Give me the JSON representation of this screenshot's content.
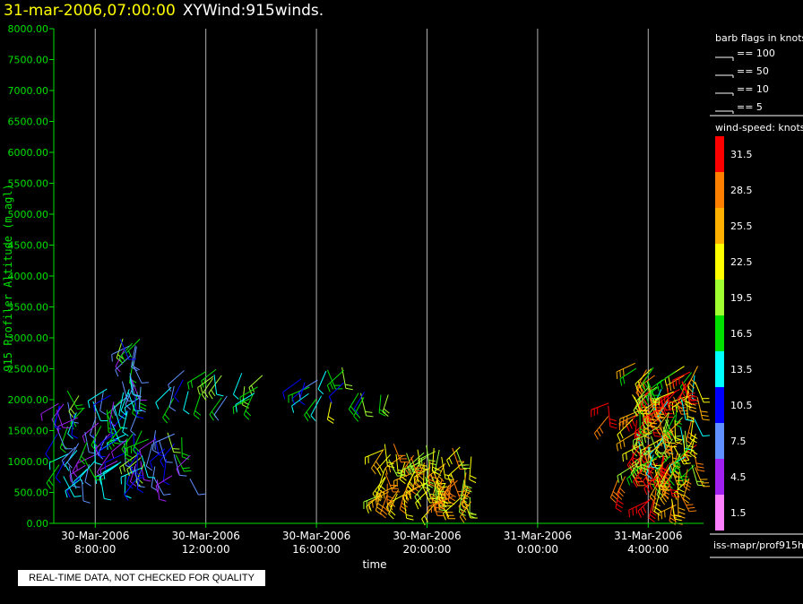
{
  "header": {
    "datetime": "31-mar-2006,07:00:00",
    "plot_name": "XYWind:915winds."
  },
  "chart_data": {
    "type": "scatter",
    "marker": "wind-barb",
    "ylabel": "915 Profiler Altitude (m agl)",
    "xlabel": "time",
    "ylim": [
      0,
      8000
    ],
    "y_ticks": [
      "0.00",
      "500.00",
      "1000.00",
      "1500.00",
      "2000.00",
      "2500.00",
      "3000.00",
      "3500.00",
      "4000.00",
      "4500.00",
      "5000.00",
      "5500.00",
      "6000.00",
      "6500.00",
      "7000.00",
      "7500.00",
      "8000.00"
    ],
    "xlim_hours": [
      6.5,
      30.0
    ],
    "x_ticks": [
      {
        "hour": 8,
        "line1": "30-Mar-2006",
        "line2": "8:00:00"
      },
      {
        "hour": 12,
        "line1": "30-Mar-2006",
        "line2": "12:00:00"
      },
      {
        "hour": 16,
        "line1": "30-Mar-2006",
        "line2": "16:00:00"
      },
      {
        "hour": 20,
        "line1": "30-Mar-2006",
        "line2": "20:00:00"
      },
      {
        "hour": 24,
        "line1": "31-Mar-2006",
        "line2": "0:00:00"
      },
      {
        "hour": 28,
        "line1": "31-Mar-2006",
        "line2": "4:00:00"
      }
    ],
    "vertical_grid": true,
    "clusters": [
      {
        "t0": 6.6,
        "t1": 9.8,
        "h0": 700,
        "h1": 2200,
        "s0": 3,
        "s1": 20,
        "n": 70
      },
      {
        "t0": 8.7,
        "t1": 11.5,
        "h0": 700,
        "h1": 1600,
        "s0": 3,
        "s1": 20,
        "n": 40
      },
      {
        "t0": 8.0,
        "t1": 9.6,
        "h0": 2050,
        "h1": 2250,
        "s0": 8,
        "s1": 15,
        "n": 6
      },
      {
        "t0": 8.9,
        "t1": 9.7,
        "h0": 2150,
        "h1": 3000,
        "s0": 3,
        "s1": 20,
        "n": 18
      },
      {
        "t0": 10.7,
        "t1": 14.2,
        "h0": 2000,
        "h1": 2500,
        "s0": 6,
        "s1": 22,
        "n": 22
      },
      {
        "t0": 15.4,
        "t1": 17.0,
        "h0": 1950,
        "h1": 2550,
        "s0": 6,
        "s1": 22,
        "n": 14
      },
      {
        "t0": 17.5,
        "t1": 18.6,
        "h0": 1950,
        "h1": 2150,
        "s0": 8,
        "s1": 20,
        "n": 6
      },
      {
        "t0": 18.2,
        "t1": 21.6,
        "h0": 350,
        "h1": 1300,
        "s0": 18,
        "s1": 30,
        "n": 90
      },
      {
        "t0": 26.5,
        "t1": 26.8,
        "h0": 1700,
        "h1": 2050,
        "s0": 26,
        "s1": 32,
        "n": 3
      },
      {
        "t0": 26.8,
        "t1": 27.4,
        "h0": 550,
        "h1": 950,
        "s0": 28,
        "s1": 32,
        "n": 4
      },
      {
        "t0": 27.4,
        "t1": 29.8,
        "h0": 900,
        "h1": 2600,
        "s0": 14,
        "s1": 34,
        "n": 150
      },
      {
        "t0": 28.0,
        "t1": 29.5,
        "h0": 250,
        "h1": 900,
        "s0": 20,
        "s1": 34,
        "n": 25
      }
    ]
  },
  "legend": {
    "barb_title": "barb flags in knots",
    "barb_items": [
      "== 100",
      "== 50",
      "== 10",
      "== 5"
    ],
    "speed_title": "wind-speed: knots",
    "speed_scale": [
      {
        "label": "31.5",
        "color": "#ff0000"
      },
      {
        "label": "28.5",
        "color": "#ff8000"
      },
      {
        "label": "25.5",
        "color": "#ffb000"
      },
      {
        "label": "22.5",
        "color": "#ffff00"
      },
      {
        "label": "19.5",
        "color": "#a0ff30"
      },
      {
        "label": "16.5",
        "color": "#00e000"
      },
      {
        "label": "13.5",
        "color": "#00ffff"
      },
      {
        "label": "10.5",
        "color": "#0000ff"
      },
      {
        "label": "7.5",
        "color": "#6090ff"
      },
      {
        "label": "4.5",
        "color": "#a020f0"
      },
      {
        "label": "1.5",
        "color": "#ff80ff"
      }
    ],
    "source": "iss-mapr/prof915h"
  },
  "disclaimer": "REAL-TIME DATA, NOT CHECKED FOR QUALITY",
  "colors": {
    "background": "#000000",
    "axis": "#00e000",
    "title_date": "#ffff00"
  }
}
